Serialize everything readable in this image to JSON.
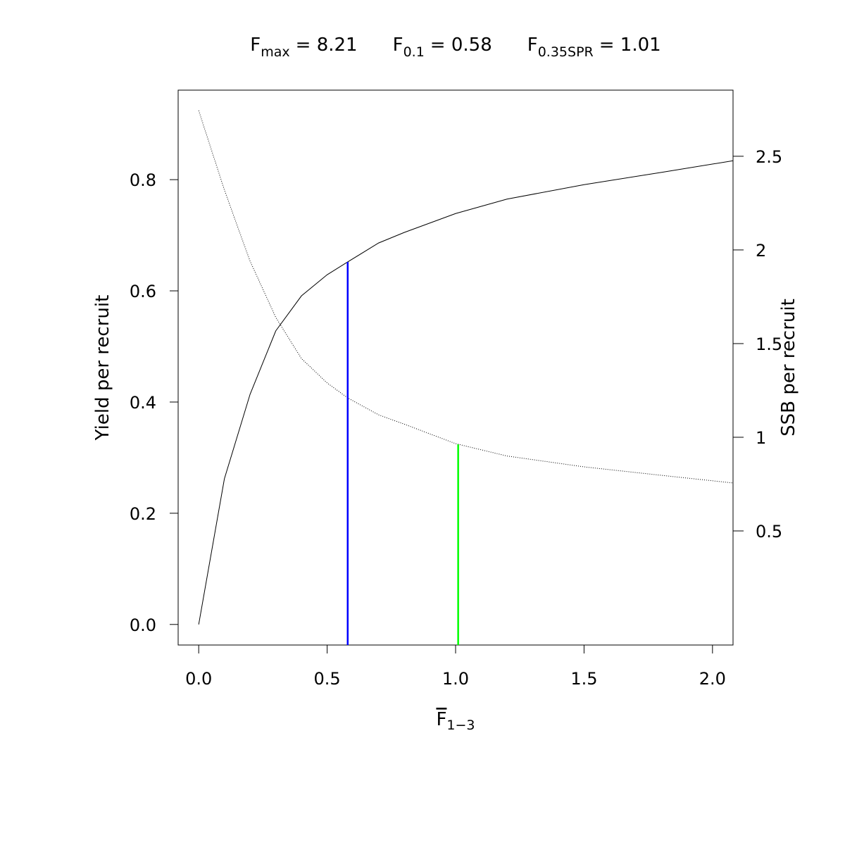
{
  "chart_data": {
    "type": "line",
    "title_parts": [
      {
        "symbol": "F",
        "subscript": "max",
        "text": "= 8.21"
      },
      {
        "symbol": "F",
        "subscript": "0.1",
        "text": "= 0.58"
      },
      {
        "symbol": "F",
        "subscript": "0.35SPR",
        "text": "= 1.01"
      }
    ],
    "xlabel": {
      "symbol": "F",
      "subscript": "1−3"
    },
    "ylabel": "Yield per recruit",
    "y2label": "SSB per recruit",
    "x": [
      0,
      0.1,
      0.2,
      0.3,
      0.4,
      0.5,
      0.58,
      0.7,
      0.8,
      1.0,
      1.2,
      1.5,
      1.8,
      2.08
    ],
    "series": [
      {
        "color": "#000000",
        "dash": "none",
        "axis": "y",
        "values": [
          0,
          0.262,
          0.414,
          0.528,
          0.591,
          0.629,
          0.652,
          0.686,
          0.705,
          0.739,
          0.765,
          0.791,
          0.813,
          0.834
        ]
      },
      {
        "color": "#000000",
        "dash": "1 2",
        "axis": "y2",
        "values": [
          2.744,
          2.32,
          1.94,
          1.64,
          1.42,
          1.29,
          1.21,
          1.12,
          1.07,
          0.966,
          0.9,
          0.842,
          0.797,
          0.756
        ]
      }
    ],
    "reference_lines": [
      {
        "x": 0.58,
        "y": 0.652,
        "axis": "y",
        "color": "#0000ff"
      },
      {
        "x": 1.01,
        "y": 0.962,
        "axis": "y2",
        "color": "#00ff00"
      }
    ],
    "xlim": [
      -0.08,
      2.08
    ],
    "ylim": [
      -0.037,
      0.961
    ],
    "y2lim": [
      -0.109,
      2.853
    ],
    "xticks": [
      {
        "value": 0,
        "label": "0.0"
      },
      0.5,
      {
        "value": 1,
        "label": "1.0"
      },
      1.5,
      {
        "value": 2,
        "label": "2.0"
      }
    ],
    "yticks": [
      {
        "value": 0,
        "label": "0.0"
      },
      0.2,
      0.4,
      0.6,
      0.8
    ],
    "y2ticks": [
      0.5,
      1,
      1.5,
      2,
      2.5
    ]
  }
}
